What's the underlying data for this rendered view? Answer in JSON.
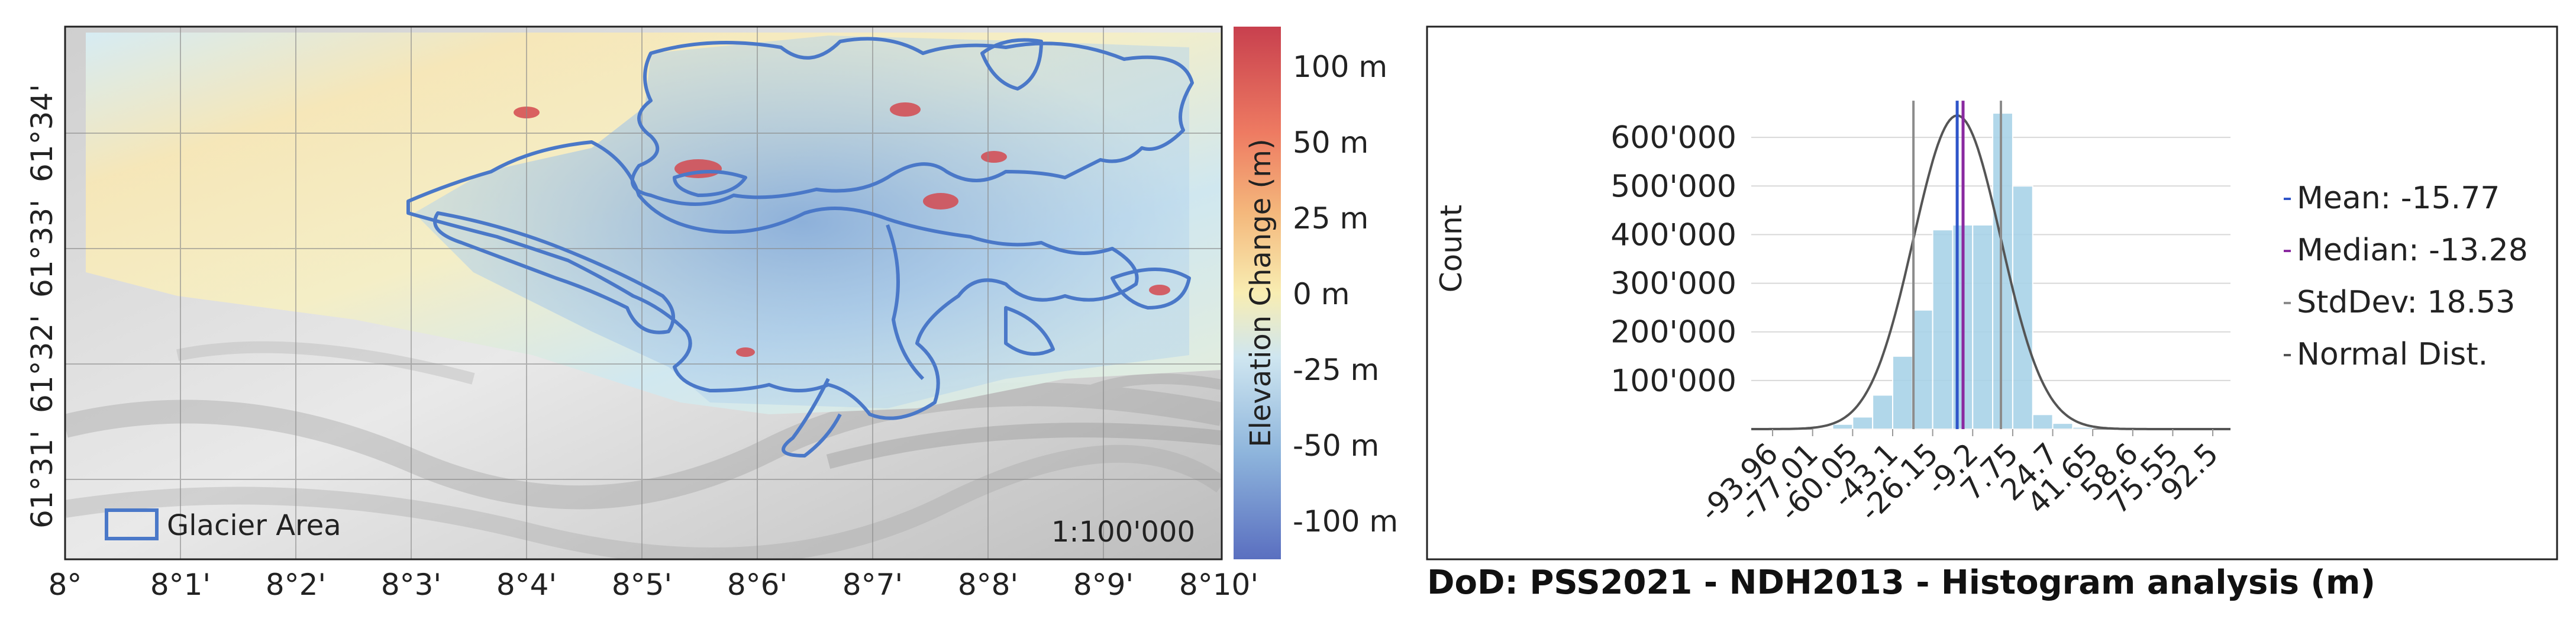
{
  "map": {
    "x_ticks": [
      "8°",
      "8°1'",
      "8°2'",
      "8°3'",
      "8°4'",
      "8°5'",
      "8°6'",
      "8°7'",
      "8°8'",
      "8°9'",
      "8°10'"
    ],
    "y_ticks": [
      "61°31'",
      "61°32'",
      "61°33'",
      "61°34'"
    ],
    "legend_label": "Glacier Area",
    "scale_text": "1:100'000",
    "colorbar": {
      "title": "Elevation Change (m)",
      "ticks": [
        "100 m",
        "50 m",
        "25 m",
        "0 m",
        "-25 m",
        "-50 m",
        "-100 m"
      ],
      "colors": [
        "#c8404e",
        "#f4a36b",
        "#f8edb2",
        "#cfe6f0",
        "#8eb5dc",
        "#5a78c4"
      ]
    },
    "glacier_outline_color": "#4a78c8"
  },
  "chart_data": {
    "type": "bar",
    "title": "DoD: PSS2021 - NDH2013 - Histogram analysis (m)",
    "xlabel": "",
    "ylabel": "Count",
    "ylim": [
      0,
      700000
    ],
    "xlim": [
      -103,
      100
    ],
    "y_ticks": [
      "100'000",
      "200'000",
      "300'000",
      "400'000",
      "500'000",
      "600'000"
    ],
    "y_tick_values": [
      100000,
      200000,
      300000,
      400000,
      500000,
      600000
    ],
    "x_ticks": [
      "-93.96",
      "-77.01",
      "-60.05",
      "-43.1",
      "-26.15",
      "-9.2",
      "7.75",
      "24.7",
      "41.65",
      "58.6",
      "75.55",
      "92.5"
    ],
    "x_tick_values": [
      -93.96,
      -77.01,
      -60.05,
      -43.1,
      -26.15,
      -9.2,
      7.75,
      24.7,
      41.65,
      58.6,
      75.55,
      92.5
    ],
    "bins": [
      {
        "start": -77.01,
        "end": -68.53,
        "value": 2000
      },
      {
        "start": -68.53,
        "end": -60.05,
        "value": 10000
      },
      {
        "start": -60.05,
        "end": -51.58,
        "value": 25000
      },
      {
        "start": -51.58,
        "end": -43.1,
        "value": 70000
      },
      {
        "start": -43.1,
        "end": -34.63,
        "value": 150000
      },
      {
        "start": -34.63,
        "end": -26.15,
        "value": 245000
      },
      {
        "start": -26.15,
        "end": -17.68,
        "value": 410000
      },
      {
        "start": -17.68,
        "end": -9.2,
        "value": 420000
      },
      {
        "start": -9.2,
        "end": -0.73,
        "value": 420000
      },
      {
        "start": -0.73,
        "end": 7.75,
        "value": 650000
      },
      {
        "start": 7.75,
        "end": 16.23,
        "value": 500000
      },
      {
        "start": 16.23,
        "end": 24.7,
        "value": 30000
      },
      {
        "start": 24.7,
        "end": 33.18,
        "value": 12000
      },
      {
        "start": 33.18,
        "end": 41.65,
        "value": 4000
      }
    ],
    "bar_color": "#a9d3e8",
    "stats": {
      "mean": -15.77,
      "median": -13.28,
      "stddev": 18.53
    },
    "normal_peak": 645000,
    "legend": [
      {
        "label": "Mean: -15.77",
        "color": "#2f55c9"
      },
      {
        "label": "Median: -13.28",
        "color": "#8a2aa0"
      },
      {
        "label": "StdDev: 18.53",
        "color": "#8c8c8c"
      },
      {
        "label": "Normal Dist.",
        "color": "#555555"
      }
    ],
    "legend_position": "right",
    "grid": true
  }
}
